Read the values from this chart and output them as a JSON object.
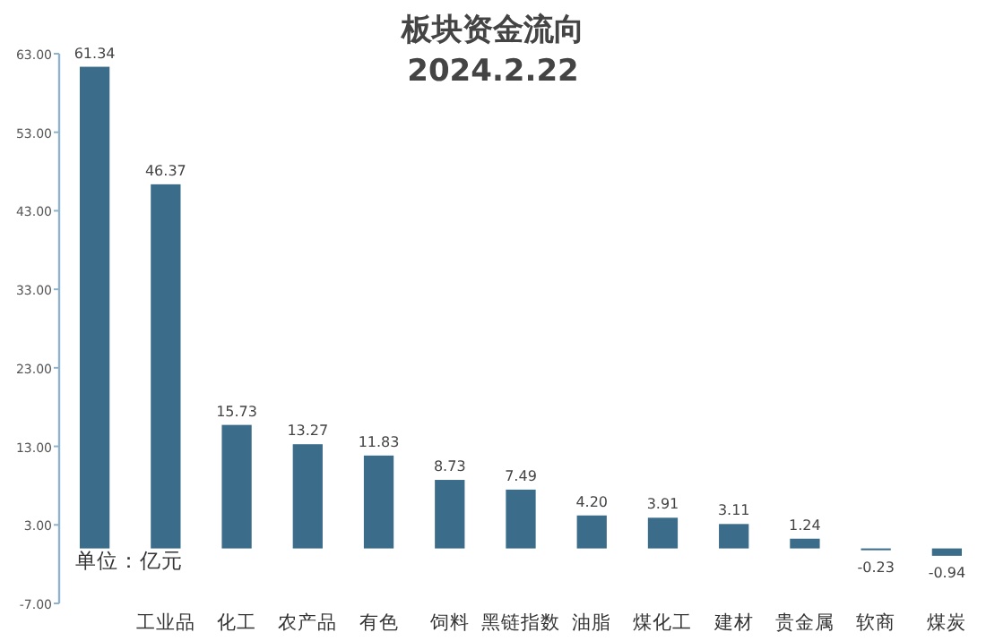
{
  "chart_data": {
    "type": "bar",
    "title": "板块资金流向",
    "subtitle": "2024.2.22",
    "categories": [
      null,
      "工业品",
      "化工",
      "农产品",
      "有色",
      "饲料",
      "黑链指数",
      "油脂",
      "煤化工",
      "建材",
      "贵金属",
      "软商",
      "煤炭"
    ],
    "values": [
      61.34,
      46.37,
      15.73,
      13.27,
      11.83,
      8.73,
      7.49,
      4.2,
      3.91,
      3.11,
      1.24,
      -0.23,
      -0.94
    ],
    "value_labels": [
      "61.34",
      "46.37",
      "15.73",
      "13.27",
      "11.83",
      "8.73",
      "7.49",
      "4.20",
      "3.91",
      "3.11",
      "1.24",
      "-0.23",
      "-0.94"
    ],
    "color": "#3b6d8b",
    "ylim": [
      -7,
      63
    ],
    "yticks": [
      {
        "value": -7,
        "label": "-7.00"
      },
      {
        "value": 3,
        "label": "3.00"
      },
      {
        "value": 13,
        "label": "13.00"
      },
      {
        "value": 23,
        "label": "23.00"
      },
      {
        "value": 33,
        "label": "33.00"
      },
      {
        "value": 43,
        "label": "43.00"
      },
      {
        "value": 53,
        "label": "53.00"
      },
      {
        "value": 63,
        "label": "63.00"
      }
    ],
    "annotations": [
      "单位：亿元"
    ]
  }
}
